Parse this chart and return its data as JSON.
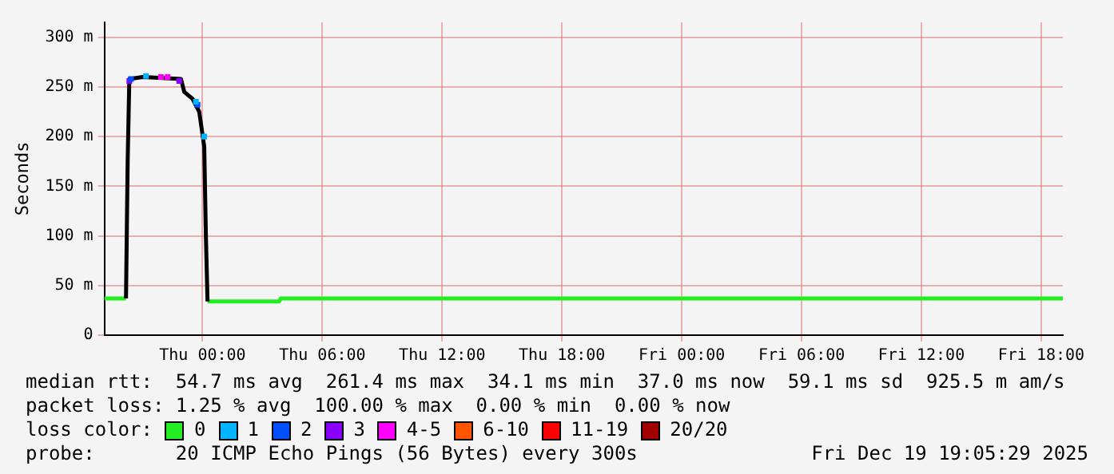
{
  "chart_data": {
    "type": "line",
    "ylabel": "Seconds",
    "legend_title": "loss color:",
    "legend": "bottom",
    "grid": true,
    "line_style": "solid",
    "xlim": [
      "2025-12-17T19:05",
      "2025-12-19T19:05"
    ],
    "xticks": [
      {
        "value": "2025-12-18T00:00",
        "label": "Thu 00:00"
      },
      {
        "value": "2025-12-18T06:00",
        "label": "Thu 06:00"
      },
      {
        "value": "2025-12-18T12:00",
        "label": "Thu 12:00"
      },
      {
        "value": "2025-12-18T18:00",
        "label": "Thu 18:00"
      },
      {
        "value": "2025-12-19T00:00",
        "label": "Fri 00:00"
      },
      {
        "value": "2025-12-19T06:00",
        "label": "Fri 06:00"
      },
      {
        "value": "2025-12-19T12:00",
        "label": "Fri 12:00"
      },
      {
        "value": "2025-12-19T18:00",
        "label": "Fri 18:00"
      }
    ],
    "ylim": [
      0,
      315
    ],
    "yticks": [
      0,
      {
        "value": 50,
        "label": "50 m"
      },
      {
        "value": 100,
        "label": "100 m"
      },
      {
        "value": 150,
        "label": "150 m"
      },
      {
        "value": 200,
        "label": "200 m"
      },
      {
        "value": 250,
        "label": "250 m"
      },
      {
        "value": 300,
        "label": "300 m"
      }
    ],
    "series": [
      {
        "color": "#000000",
        "x": [
          "2025-12-17T20:10",
          "2025-12-17T20:15",
          "2025-12-17T20:20",
          "2025-12-17T21:00",
          "2025-12-17T22:00",
          "2025-12-17T22:55",
          "2025-12-17T23:05",
          "2025-12-17T23:30",
          "2025-12-17T23:50",
          "2025-12-18T00:05",
          "2025-12-18T00:10",
          "2025-12-18T00:15"
        ],
        "values": [
          37,
          175,
          258,
          260,
          259,
          258,
          245,
          238,
          225,
          190,
          100,
          34
        ]
      },
      {
        "color": "#22ee22",
        "x": [
          "2025-12-17T19:05",
          "2025-12-17T20:10"
        ],
        "values": [
          37,
          37
        ]
      },
      {
        "name": "0",
        "color": "#22ee22",
        "x": [
          "2025-12-18T00:15",
          "2025-12-18T03:50",
          "2025-12-18T03:55",
          "2025-12-19T19:05"
        ],
        "values": [
          34,
          34,
          37,
          37
        ]
      },
      {
        "name": "1",
        "type": "scatter",
        "color": "#00b4ff",
        "x": [
          "2025-12-17T21:10",
          "2025-12-17T23:40",
          "2025-12-18T00:05"
        ],
        "values": [
          261,
          235,
          200
        ]
      },
      {
        "name": "2",
        "type": "scatter",
        "color": "#0050ff",
        "x": [
          "2025-12-17T20:25",
          "2025-12-17T23:45"
        ],
        "values": [
          258,
          232
        ]
      },
      {
        "name": "3",
        "type": "scatter",
        "color": "#8a00ff",
        "x": [
          "2025-12-17T20:20",
          "2025-12-17T22:50"
        ],
        "values": [
          256,
          256
        ]
      },
      {
        "name": "4-5",
        "type": "scatter",
        "color": "#ff00ff",
        "x": [
          "2025-12-17T21:55",
          "2025-12-17T22:15"
        ],
        "values": [
          260,
          260
        ]
      },
      {
        "name": "6-10",
        "type": "scatter",
        "color": "#ff5500"
      },
      {
        "name": "11-19",
        "type": "scatter",
        "color": "#ff0000"
      },
      {
        "name": "20/20",
        "type": "scatter",
        "color": "#a10000"
      }
    ],
    "annotations": [
      "median rtt:  54.7 ms avg  261.4 ms max  34.1 ms min  37.0 ms now  59.1 ms sd  925.5 m am/s",
      "packet loss: 1.25 % avg  100.00 % max  0.00 % min  0.00 % now",
      "probe:       20 ICMP Echo Pings (56 Bytes) every 300s",
      "Fri Dec 19 19:05:29 2025"
    ]
  }
}
